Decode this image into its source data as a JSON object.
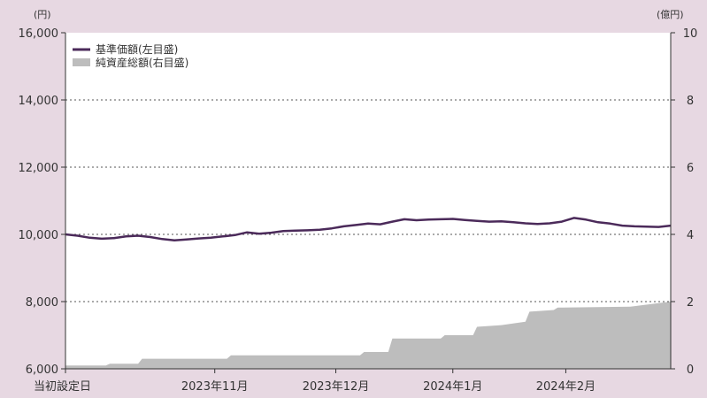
{
  "chart_data": {
    "type": "line",
    "x_tick_labels": [
      "当初設定日",
      "2023年11月",
      "2023年12月",
      "2024年1月",
      "2024年2月"
    ],
    "y_left": {
      "unit": "(円)",
      "ticks": [
        "6,000",
        "8,000",
        "10,000",
        "12,000",
        "14,000",
        "16,000"
      ],
      "min": 6000,
      "max": 16000
    },
    "y_right": {
      "unit": "(億円)",
      "ticks": [
        "0",
        "2",
        "4",
        "6",
        "8",
        "10"
      ],
      "min": 0,
      "max": 10
    },
    "gridlines": "dotted",
    "legend_placement": "top-left",
    "series": [
      {
        "name": "基準価額(左目盛)",
        "type": "line",
        "axis": "left",
        "color": "#4b2a5a",
        "points": [
          [
            0,
            10000
          ],
          [
            3,
            9960
          ],
          [
            6,
            9900
          ],
          [
            9,
            9870
          ],
          [
            12,
            9890
          ],
          [
            15,
            9940
          ],
          [
            18,
            9960
          ],
          [
            21,
            9920
          ],
          [
            24,
            9860
          ],
          [
            27,
            9820
          ],
          [
            30,
            9850
          ],
          [
            33,
            9880
          ],
          [
            36,
            9900
          ],
          [
            39,
            9940
          ],
          [
            42,
            9980
          ],
          [
            45,
            10060
          ],
          [
            48,
            10020
          ],
          [
            51,
            10050
          ],
          [
            54,
            10100
          ],
          [
            57,
            10110
          ],
          [
            60,
            10120
          ],
          [
            63,
            10140
          ],
          [
            66,
            10180
          ],
          [
            69,
            10240
          ],
          [
            72,
            10280
          ],
          [
            75,
            10320
          ],
          [
            78,
            10300
          ],
          [
            81,
            10380
          ],
          [
            84,
            10450
          ],
          [
            87,
            10420
          ],
          [
            90,
            10440
          ],
          [
            93,
            10450
          ],
          [
            96,
            10460
          ],
          [
            99,
            10430
          ],
          [
            102,
            10400
          ],
          [
            105,
            10380
          ],
          [
            108,
            10390
          ],
          [
            111,
            10360
          ],
          [
            114,
            10330
          ],
          [
            117,
            10310
          ],
          [
            120,
            10330
          ],
          [
            123,
            10380
          ],
          [
            126,
            10490
          ],
          [
            129,
            10440
          ],
          [
            132,
            10360
          ],
          [
            135,
            10320
          ],
          [
            138,
            10260
          ],
          [
            141,
            10240
          ],
          [
            144,
            10230
          ],
          [
            147,
            10220
          ],
          [
            150,
            10260
          ]
        ]
      },
      {
        "name": "純資産総額(右目盛)",
        "type": "area",
        "axis": "right",
        "color": "#bdbdbd",
        "points": [
          [
            0,
            0.1
          ],
          [
            10,
            0.1
          ],
          [
            11,
            0.15
          ],
          [
            18,
            0.15
          ],
          [
            19,
            0.3
          ],
          [
            40,
            0.3
          ],
          [
            41,
            0.4
          ],
          [
            73,
            0.4
          ],
          [
            74,
            0.5
          ],
          [
            80,
            0.5
          ],
          [
            81,
            0.9
          ],
          [
            93,
            0.9
          ],
          [
            94,
            1.0
          ],
          [
            101,
            1.0
          ],
          [
            102,
            1.25
          ],
          [
            108,
            1.3
          ],
          [
            114,
            1.4
          ],
          [
            115,
            1.7
          ],
          [
            121,
            1.75
          ],
          [
            122,
            1.82
          ],
          [
            140,
            1.85
          ],
          [
            150,
            2.0
          ]
        ]
      }
    ],
    "x_tick_positions": [
      0,
      37,
      67,
      96,
      124
    ],
    "x_max": 150
  }
}
